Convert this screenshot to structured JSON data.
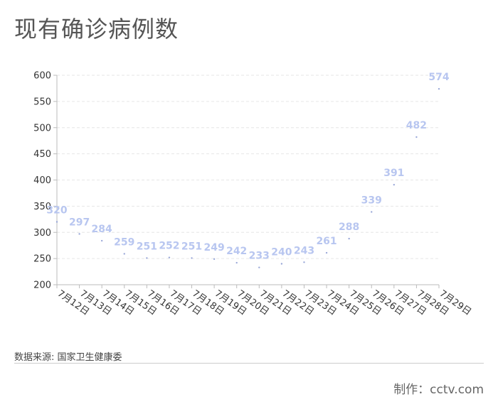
{
  "title": "现有确诊病例数",
  "footer": {
    "source": "数据来源: 国家卫生健康委",
    "credit": "制作：cctv.com"
  },
  "colors": {
    "label": "#b8c6f0",
    "point": "#9aa8d8",
    "grid": "#e6e6e6",
    "axis": "#bbbbbb"
  },
  "chart_data": {
    "type": "scatter",
    "title": "现有确诊病例数",
    "xlabel": "",
    "ylabel": "",
    "categories": [
      "7月12日",
      "7月13日",
      "7月14日",
      "7月15日",
      "7月16日",
      "7月17日",
      "7月18日",
      "7月19日",
      "7月20日",
      "7月21日",
      "7月22日",
      "7月23日",
      "7月24日",
      "7月25日",
      "7月26日",
      "7月27日",
      "7月28日",
      "7月29日"
    ],
    "values": [
      320,
      297,
      284,
      259,
      251,
      252,
      251,
      249,
      242,
      233,
      240,
      243,
      261,
      288,
      339,
      391,
      482,
      574
    ],
    "ylim": [
      200,
      600
    ],
    "yticks": [
      200,
      250,
      300,
      350,
      400,
      450,
      500,
      550,
      600
    ],
    "grid": true,
    "data_labels": true
  }
}
